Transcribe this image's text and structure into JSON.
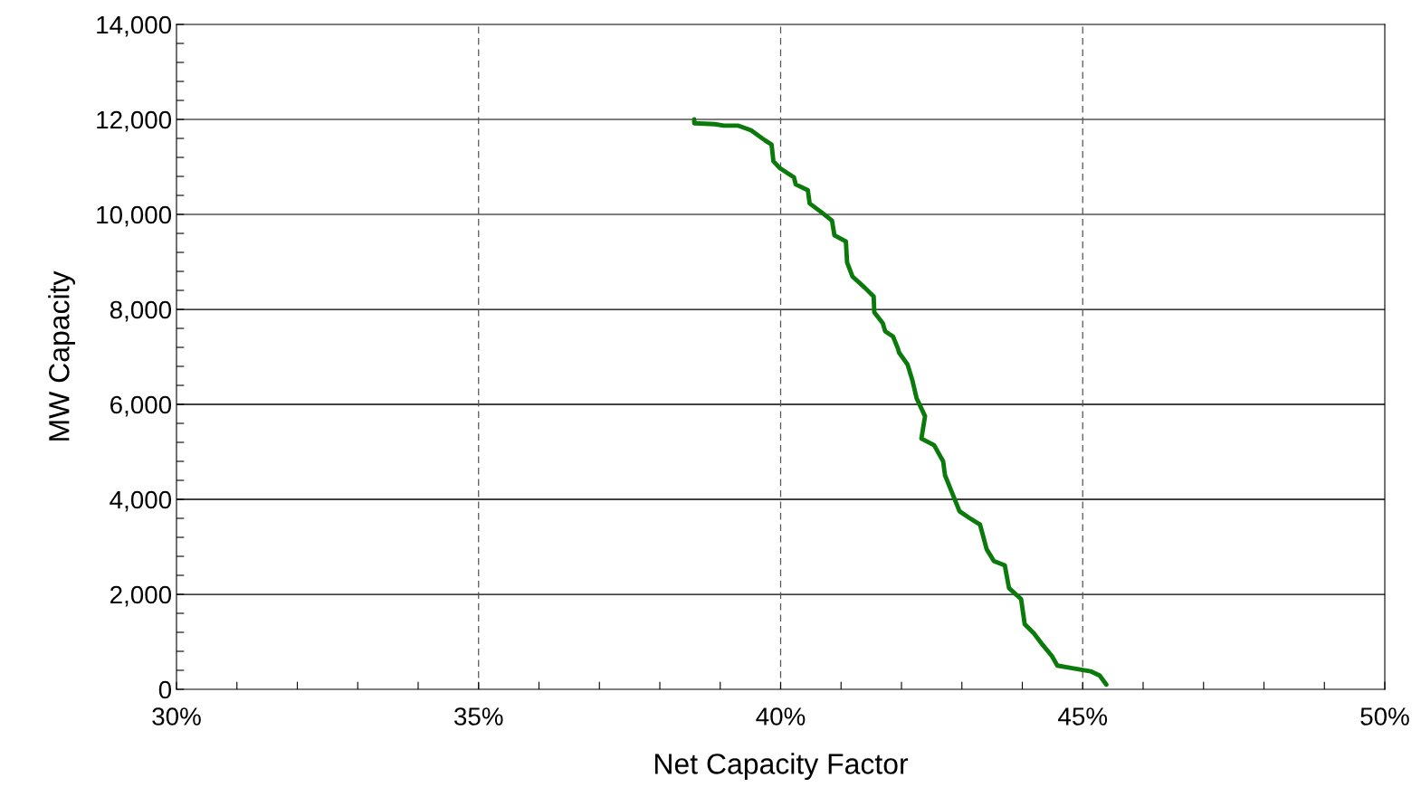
{
  "chart_data": {
    "type": "line",
    "xlabel": "Net Capacity Factor",
    "ylabel": "MW Capacity",
    "series": [
      {
        "color": "#0a7a0a",
        "x": [
          38.57,
          38.57,
          38.91,
          39.06,
          39.29,
          39.51,
          39.74,
          39.85,
          39.88,
          39.99,
          40.22,
          40.25,
          40.45,
          40.48,
          40.68,
          40.85,
          40.89,
          41.08,
          41.1,
          41.19,
          41.39,
          41.54,
          41.55,
          41.69,
          41.73,
          41.86,
          41.94,
          41.96,
          42.1,
          42.18,
          42.25,
          42.39,
          42.33,
          42.54,
          42.69,
          42.72,
          42.84,
          42.96,
          43.11,
          43.3,
          43.41,
          43.53,
          43.71,
          43.78,
          43.98,
          44.04,
          44.19,
          44.34,
          44.49,
          44.58,
          44.76,
          45.13,
          45.28,
          45.39
        ],
        "values": [
          12000,
          11920,
          11900,
          11870,
          11870,
          11770,
          11560,
          11470,
          11120,
          10970,
          10780,
          10630,
          10510,
          10230,
          10040,
          9870,
          9560,
          9430,
          8990,
          8690,
          8460,
          8270,
          7940,
          7710,
          7540,
          7430,
          7180,
          7090,
          6840,
          6510,
          6130,
          5750,
          5280,
          5140,
          4800,
          4510,
          4130,
          3750,
          3620,
          3470,
          2950,
          2700,
          2610,
          2130,
          1900,
          1370,
          1180,
          930,
          700,
          500,
          460,
          380,
          290,
          100
        ]
      }
    ],
    "xlim": [
      30,
      50
    ],
    "xticks": [
      {
        "value": 30,
        "label": "30%"
      },
      {
        "value": 31,
        "label": null
      },
      {
        "value": 32,
        "label": null
      },
      {
        "value": 33,
        "label": null
      },
      {
        "value": 34,
        "label": null
      },
      {
        "value": 35,
        "label": "35%"
      },
      {
        "value": 36,
        "label": null
      },
      {
        "value": 37,
        "label": null
      },
      {
        "value": 38,
        "label": null
      },
      {
        "value": 39,
        "label": null
      },
      {
        "value": 40,
        "label": "40%"
      },
      {
        "value": 41,
        "label": null
      },
      {
        "value": 42,
        "label": null
      },
      {
        "value": 43,
        "label": null
      },
      {
        "value": 44,
        "label": null
      },
      {
        "value": 45,
        "label": "45%"
      },
      {
        "value": 46,
        "label": null
      },
      {
        "value": 47,
        "label": null
      },
      {
        "value": 48,
        "label": null
      },
      {
        "value": 49,
        "label": null
      },
      {
        "value": 50,
        "label": "50%"
      }
    ],
    "ylim": [
      0,
      14000
    ],
    "yticks": [
      {
        "value": 0,
        "label": "0"
      },
      {
        "value": 400,
        "label": null
      },
      {
        "value": 800,
        "label": null
      },
      {
        "value": 1200,
        "label": null
      },
      {
        "value": 1600,
        "label": null
      },
      {
        "value": 2000,
        "label": "2,000"
      },
      {
        "value": 2400,
        "label": null
      },
      {
        "value": 2800,
        "label": null
      },
      {
        "value": 3200,
        "label": null
      },
      {
        "value": 3600,
        "label": null
      },
      {
        "value": 4000,
        "label": "4,000"
      },
      {
        "value": 4400,
        "label": null
      },
      {
        "value": 4800,
        "label": null
      },
      {
        "value": 5200,
        "label": null
      },
      {
        "value": 5600,
        "label": null
      },
      {
        "value": 6000,
        "label": "6,000"
      },
      {
        "value": 6400,
        "label": null
      },
      {
        "value": 6800,
        "label": null
      },
      {
        "value": 7200,
        "label": null
      },
      {
        "value": 7600,
        "label": null
      },
      {
        "value": 8000,
        "label": "8,000"
      },
      {
        "value": 8400,
        "label": null
      },
      {
        "value": 8800,
        "label": null
      },
      {
        "value": 9200,
        "label": null
      },
      {
        "value": 9600,
        "label": null
      },
      {
        "value": 10000,
        "label": "10,000"
      },
      {
        "value": 10400,
        "label": null
      },
      {
        "value": 10800,
        "label": null
      },
      {
        "value": 11200,
        "label": null
      },
      {
        "value": 11600,
        "label": null
      },
      {
        "value": 12000,
        "label": "12,000"
      },
      {
        "value": 12400,
        "label": null
      },
      {
        "value": 12800,
        "label": null
      },
      {
        "value": 13200,
        "label": null
      },
      {
        "value": 13600,
        "label": null
      },
      {
        "value": 14000,
        "label": "14,000"
      }
    ],
    "grid": true,
    "legend": false,
    "marker": "none",
    "line_style": "solid"
  }
}
